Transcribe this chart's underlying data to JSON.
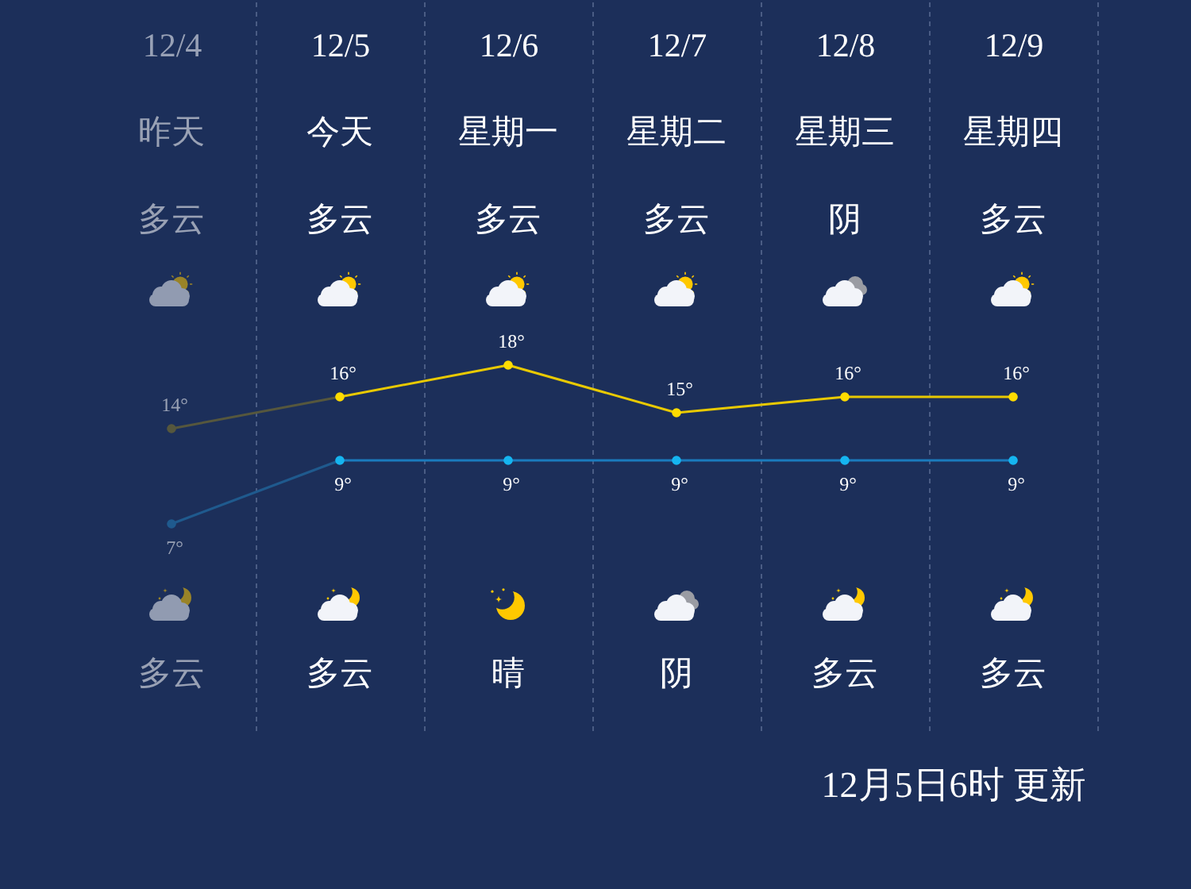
{
  "chart_data": {
    "type": "line",
    "categories": [
      "12/4",
      "12/5",
      "12/6",
      "12/7",
      "12/8",
      "12/9"
    ],
    "series": [
      {
        "color": "#e8c900",
        "colors": [
          "#56573d",
          "#ffdc00",
          "#ffdc00",
          "#ffdc00",
          "#ffdc00",
          "#ffdc00"
        ],
        "values": [
          14,
          16,
          18,
          15,
          16,
          16
        ],
        "value_labels": [
          "14°",
          "16°",
          "18°",
          "15°",
          "16°",
          "16°"
        ]
      },
      {
        "axis": "y2",
        "color": "#1a7bbd",
        "colors": [
          "#1f5a8e",
          "#15b5f0",
          "#15b5f0",
          "#15b5f0",
          "#15b5f0",
          "#15b5f0"
        ],
        "values": [
          7,
          9,
          9,
          9,
          9,
          9
        ],
        "value_labels": [
          "7°",
          "9°",
          "9°",
          "9°",
          "9°",
          "9°"
        ]
      }
    ],
    "ylim": [
      -5,
      41
    ],
    "y2lim": [
      0.5,
      23.5
    ],
    "tick_labels": "x",
    "grid": "x",
    "marker": "circle",
    "line_style": "solid",
    "annotations": [
      "昨天",
      "今天",
      "星期一",
      "星期二",
      "星期三",
      "星期四",
      "多云",
      "多云",
      "多云",
      "多云",
      "阴",
      "多云",
      "多云",
      "多云",
      "晴",
      "阴",
      "多云",
      "多云",
      "12月5日6时 更新"
    ]
  }
}
